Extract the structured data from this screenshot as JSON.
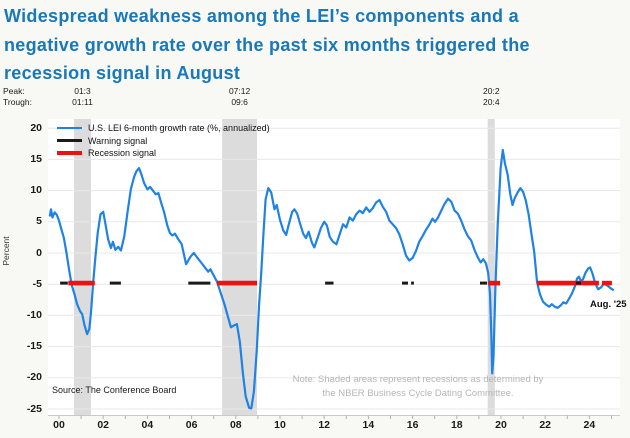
{
  "chart_data": {
    "type": "line",
    "title_lines": [
      "Widespread weakness among the LEI’s components and a",
      "negative growth rate over the past six months triggered the",
      "recession signal in August"
    ],
    "series": [
      {
        "name": "U.S. LEI 6-month growth rate (%, annualized)",
        "color": "#1e82e6",
        "points": [
          [
            2000.09,
            6.0
          ],
          [
            2000.14,
            7.0
          ],
          [
            2000.2,
            5.7
          ],
          [
            2000.3,
            6.5
          ],
          [
            2000.4,
            6.1
          ],
          [
            2000.5,
            5.2
          ],
          [
            2000.6,
            3.9
          ],
          [
            2000.72,
            2.4
          ],
          [
            2000.84,
            0.0
          ],
          [
            2000.95,
            -2.5
          ],
          [
            2001.08,
            -5.2
          ],
          [
            2001.2,
            -6.6
          ],
          [
            2001.32,
            -8.2
          ],
          [
            2001.45,
            -9.3
          ],
          [
            2001.55,
            -9.8
          ],
          [
            2001.65,
            -11.5
          ],
          [
            2001.77,
            -13.0
          ],
          [
            2001.87,
            -12.2
          ],
          [
            2001.95,
            -9.5
          ],
          [
            2002.05,
            -4.5
          ],
          [
            2002.15,
            -0.5
          ],
          [
            2002.25,
            3.2
          ],
          [
            2002.38,
            6.2
          ],
          [
            2002.5,
            6.6
          ],
          [
            2002.6,
            4.7
          ],
          [
            2002.72,
            2.2
          ],
          [
            2002.85,
            0.8
          ],
          [
            2002.94,
            1.8
          ],
          [
            2003.05,
            0.5
          ],
          [
            2003.18,
            1.0
          ],
          [
            2003.3,
            0.4
          ],
          [
            2003.45,
            2.6
          ],
          [
            2003.6,
            6.5
          ],
          [
            2003.75,
            10.2
          ],
          [
            2003.9,
            12.2
          ],
          [
            2004.0,
            13.1
          ],
          [
            2004.12,
            13.6
          ],
          [
            2004.22,
            12.7
          ],
          [
            2004.35,
            11.2
          ],
          [
            2004.5,
            10.2
          ],
          [
            2004.62,
            10.6
          ],
          [
            2004.75,
            10.0
          ],
          [
            2004.88,
            9.4
          ],
          [
            2005.0,
            9.6
          ],
          [
            2005.12,
            8.1
          ],
          [
            2005.25,
            6.6
          ],
          [
            2005.4,
            4.4
          ],
          [
            2005.52,
            3.2
          ],
          [
            2005.62,
            2.8
          ],
          [
            2005.75,
            3.1
          ],
          [
            2005.9,
            2.2
          ],
          [
            2006.05,
            1.4
          ],
          [
            2006.25,
            -1.8
          ],
          [
            2006.45,
            -0.6
          ],
          [
            2006.6,
            0.0
          ],
          [
            2006.75,
            -0.7
          ],
          [
            2006.95,
            -1.6
          ],
          [
            2007.1,
            -2.3
          ],
          [
            2007.25,
            -3.0
          ],
          [
            2007.35,
            -2.6
          ],
          [
            2007.5,
            -3.6
          ],
          [
            2007.65,
            -4.6
          ],
          [
            2007.8,
            -6.2
          ],
          [
            2008.0,
            -8.4
          ],
          [
            2008.15,
            -10.3
          ],
          [
            2008.28,
            -11.9
          ],
          [
            2008.42,
            -11.6
          ],
          [
            2008.55,
            -11.4
          ],
          [
            2008.68,
            -14.2
          ],
          [
            2008.82,
            -19.3
          ],
          [
            2008.95,
            -23.0
          ],
          [
            2009.1,
            -24.8
          ],
          [
            2009.2,
            -24.9
          ],
          [
            2009.32,
            -22.2
          ],
          [
            2009.45,
            -15.5
          ],
          [
            2009.55,
            -8.5
          ],
          [
            2009.65,
            -3.3
          ],
          [
            2009.75,
            3.0
          ],
          [
            2009.85,
            8.6
          ],
          [
            2009.97,
            10.4
          ],
          [
            2010.1,
            9.7
          ],
          [
            2010.25,
            7.0
          ],
          [
            2010.35,
            7.7
          ],
          [
            2010.5,
            5.3
          ],
          [
            2010.65,
            3.6
          ],
          [
            2010.78,
            2.9
          ],
          [
            2010.9,
            4.6
          ],
          [
            2011.05,
            6.6
          ],
          [
            2011.15,
            7.0
          ],
          [
            2011.28,
            6.3
          ],
          [
            2011.4,
            4.8
          ],
          [
            2011.55,
            3.1
          ],
          [
            2011.67,
            2.4
          ],
          [
            2011.8,
            3.4
          ],
          [
            2011.95,
            1.6
          ],
          [
            2012.05,
            0.9
          ],
          [
            2012.2,
            2.4
          ],
          [
            2012.35,
            4.0
          ],
          [
            2012.5,
            5.0
          ],
          [
            2012.62,
            4.4
          ],
          [
            2012.75,
            2.6
          ],
          [
            2012.9,
            1.8
          ],
          [
            2013.05,
            1.4
          ],
          [
            2013.2,
            3.0
          ],
          [
            2013.35,
            4.6
          ],
          [
            2013.5,
            4.1
          ],
          [
            2013.65,
            5.7
          ],
          [
            2013.8,
            5.2
          ],
          [
            2013.95,
            6.2
          ],
          [
            2014.1,
            6.8
          ],
          [
            2014.25,
            6.4
          ],
          [
            2014.4,
            7.3
          ],
          [
            2014.55,
            6.6
          ],
          [
            2014.7,
            7.2
          ],
          [
            2014.85,
            8.1
          ],
          [
            2015.0,
            8.5
          ],
          [
            2015.15,
            7.4
          ],
          [
            2015.3,
            6.6
          ],
          [
            2015.45,
            5.2
          ],
          [
            2015.6,
            4.6
          ],
          [
            2015.75,
            4.0
          ],
          [
            2015.9,
            3.0
          ],
          [
            2016.05,
            1.4
          ],
          [
            2016.2,
            -0.4
          ],
          [
            2016.35,
            -1.2
          ],
          [
            2016.5,
            -0.8
          ],
          [
            2016.65,
            0.3
          ],
          [
            2016.8,
            1.8
          ],
          [
            2016.95,
            2.7
          ],
          [
            2017.1,
            3.7
          ],
          [
            2017.25,
            4.5
          ],
          [
            2017.4,
            5.5
          ],
          [
            2017.52,
            5.0
          ],
          [
            2017.65,
            5.7
          ],
          [
            2017.8,
            6.8
          ],
          [
            2017.95,
            7.9
          ],
          [
            2018.1,
            8.7
          ],
          [
            2018.25,
            8.2
          ],
          [
            2018.4,
            6.8
          ],
          [
            2018.55,
            6.3
          ],
          [
            2018.7,
            5.2
          ],
          [
            2018.85,
            3.8
          ],
          [
            2019.0,
            2.7
          ],
          [
            2019.15,
            2.0
          ],
          [
            2019.3,
            0.5
          ],
          [
            2019.45,
            -0.7
          ],
          [
            2019.58,
            -1.5
          ],
          [
            2019.7,
            -1.0
          ],
          [
            2019.82,
            -1.7
          ],
          [
            2019.92,
            -3.2
          ],
          [
            2020.0,
            -6.5
          ],
          [
            2020.06,
            -13.0
          ],
          [
            2020.1,
            -19.3
          ],
          [
            2020.16,
            -16.5
          ],
          [
            2020.25,
            -5.0
          ],
          [
            2020.35,
            4.5
          ],
          [
            2020.48,
            13.5
          ],
          [
            2020.58,
            16.5
          ],
          [
            2020.68,
            14.3
          ],
          [
            2020.8,
            12.6
          ],
          [
            2020.92,
            9.4
          ],
          [
            2021.02,
            7.7
          ],
          [
            2021.12,
            8.8
          ],
          [
            2021.25,
            9.7
          ],
          [
            2021.38,
            10.4
          ],
          [
            2021.5,
            9.8
          ],
          [
            2021.62,
            8.4
          ],
          [
            2021.75,
            6.2
          ],
          [
            2021.88,
            3.0
          ],
          [
            2022.0,
            0.2
          ],
          [
            2022.13,
            -4.6
          ],
          [
            2022.26,
            -6.6
          ],
          [
            2022.4,
            -7.8
          ],
          [
            2022.55,
            -8.3
          ],
          [
            2022.68,
            -8.6
          ],
          [
            2022.8,
            -8.2
          ],
          [
            2022.93,
            -8.6
          ],
          [
            2023.06,
            -8.8
          ],
          [
            2023.2,
            -8.4
          ],
          [
            2023.32,
            -7.9
          ],
          [
            2023.45,
            -8.1
          ],
          [
            2023.58,
            -7.3
          ],
          [
            2023.71,
            -6.5
          ],
          [
            2023.85,
            -5.3
          ],
          [
            2023.94,
            -4.1
          ],
          [
            2024.03,
            -3.8
          ],
          [
            2024.12,
            -4.6
          ],
          [
            2024.21,
            -4.2
          ],
          [
            2024.32,
            -3.2
          ],
          [
            2024.44,
            -2.5
          ],
          [
            2024.53,
            -2.3
          ],
          [
            2024.64,
            -3.3
          ],
          [
            2024.76,
            -4.8
          ],
          [
            2024.9,
            -5.8
          ],
          [
            2025.03,
            -5.5
          ],
          [
            2025.17,
            -4.8
          ],
          [
            2025.3,
            -5.2
          ],
          [
            2025.44,
            -5.6
          ],
          [
            2025.57,
            -5.9
          ]
        ]
      }
    ],
    "signals": {
      "warning": {
        "label": "Warning signal",
        "color": "#1a1a1a",
        "level": -4.5,
        "segments": [
          [
            2000.55,
            2000.9
          ],
          [
            2002.8,
            2003.3
          ],
          [
            2006.35,
            2007.35
          ],
          [
            2012.54,
            2012.92
          ],
          [
            2016.02,
            2016.29
          ],
          [
            2016.43,
            2016.56
          ],
          [
            2019.55,
            2019.87
          ],
          [
            2023.89,
            2024.12
          ]
        ]
      },
      "recession": {
        "label": "Recession signal",
        "color": "#ee1111",
        "level": -4.5,
        "segments": [
          [
            2000.92,
            2002.12
          ],
          [
            2007.65,
            2009.46
          ],
          [
            2019.92,
            2020.46
          ],
          [
            2022.13,
            2024.93
          ],
          [
            2025.07,
            2025.52
          ]
        ]
      }
    },
    "recessions": [
      {
        "peak": "01:3",
        "trough": "01:11",
        "start": 2001.18,
        "end": 2001.95
      },
      {
        "peak": "07:12",
        "trough": "09:6",
        "start": 2007.88,
        "end": 2009.46
      },
      {
        "peak": "20:2",
        "trough": "20:4",
        "start": 2019.9,
        "end": 2020.22
      }
    ],
    "x_axis": {
      "tick_labels": [
        "00",
        "02",
        "04",
        "06",
        "08",
        "10",
        "12",
        "14",
        "16",
        "18",
        "20",
        "22",
        "24"
      ],
      "tick_years": [
        2000,
        2002,
        2004,
        2006,
        2008,
        2010,
        2012,
        2014,
        2016,
        2018,
        2020,
        2022,
        2024
      ],
      "range": [
        2000.0,
        2025.9
      ]
    },
    "y_axis": {
      "label": "Percent",
      "ticks": [
        20,
        15,
        10,
        5,
        0,
        -5,
        -10,
        -15,
        -20,
        -25
      ],
      "range": [
        -25,
        20
      ]
    },
    "annotations": {
      "peak_label": "Peak:",
      "trough_label": "Trough:",
      "end_label": "Aug. '25"
    },
    "source": "Source: The Conference Board",
    "note_lines": [
      "Note: Shaded areas represent recessions as determined by",
      "the NBER Business Cycle Dating Committee."
    ],
    "colors": {
      "title": "#1878ba",
      "band": "#dcdcdc",
      "grid": "#e8e8e8",
      "axis": "#c9c9c9"
    }
  }
}
